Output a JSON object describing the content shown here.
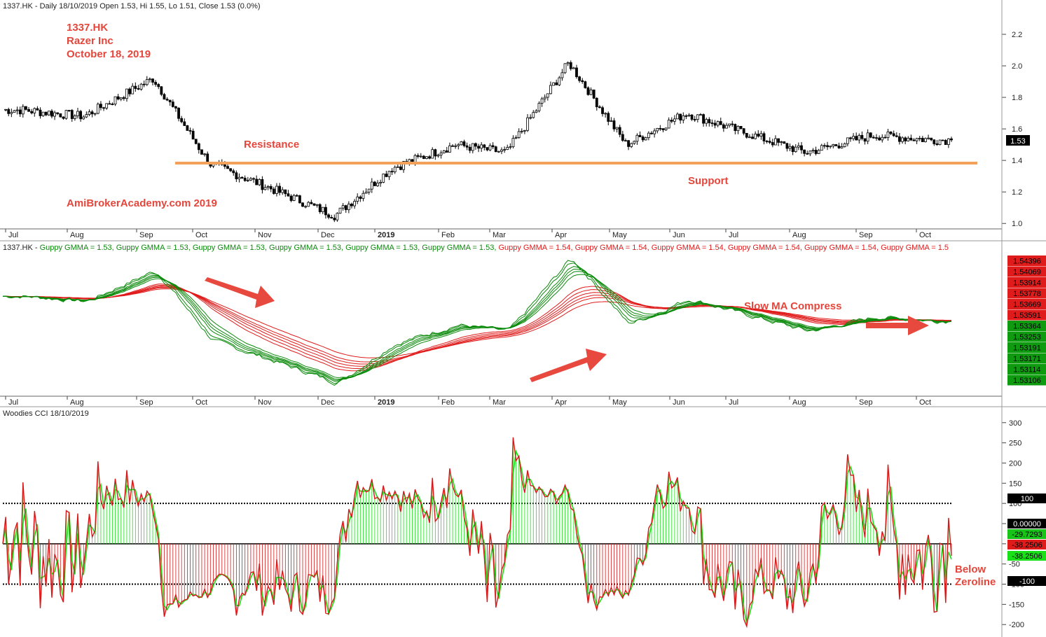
{
  "colors": {
    "annotation": "#e5463b",
    "support_line": "#f2a05a",
    "fast_ma": "#0b8a0b",
    "slow_ma": "#e01b1b",
    "cci_green": "#19e019",
    "cci_red": "#d81818",
    "arrow": "#e8493f"
  },
  "price_panel": {
    "header": "1337.HK - Daily 18/10/2019 Open 1.53, Hi 1.55, Lo 1.51, Close 1.53 (0.0%)",
    "title_lines": [
      "1337.HK",
      "Razer Inc",
      "October 18, 2019"
    ],
    "watermark": "AmiBrokerAcademy.com   2019",
    "resistance_label": "Resistance",
    "support_label": "Support",
    "last_price_badge": "1.53"
  },
  "gmma_panel": {
    "header": {
      "prefix": "1337.HK - ",
      "entries": [
        {
          "text": "Guppy GMMA = 1.53, ",
          "color": "green"
        },
        {
          "text": "Guppy GMMA = 1.53, ",
          "color": "green"
        },
        {
          "text": "Guppy GMMA = 1.53, ",
          "color": "green"
        },
        {
          "text": "Guppy GMMA = 1.53, ",
          "color": "green"
        },
        {
          "text": "Guppy GMMA = 1.53, ",
          "color": "green"
        },
        {
          "text": "Guppy GMMA = 1.53, ",
          "color": "green"
        },
        {
          "text": "Guppy GMMA = 1.54, ",
          "color": "red"
        },
        {
          "text": "Guppy GMMA = 1.54, ",
          "color": "red"
        },
        {
          "text": "Guppy GMMA = 1.54, ",
          "color": "red"
        },
        {
          "text": "Guppy GMMA = 1.54, ",
          "color": "red"
        },
        {
          "text": "Guppy GMMA = 1.54, ",
          "color": "red"
        },
        {
          "text": "Guppy GMMA = 1.5",
          "color": "red"
        }
      ]
    },
    "annotation": "Slow MA Compress",
    "badges_red": [
      "1.54396",
      "1.54069",
      "1.53914",
      "1.53778",
      "1.53669",
      "1.53591"
    ],
    "badges_green": [
      "1.53364",
      "1.53253",
      "1.53191",
      "1.53171",
      "1.53114",
      "1.53106"
    ]
  },
  "cci_panel": {
    "header": "Woodies CCI   18/10/2019",
    "annotation_lines": [
      "Below",
      "Zeroline"
    ],
    "badges": [
      {
        "text": "100",
        "bg": "#000000",
        "fg": "#ffffff"
      },
      {
        "text": "0.00000",
        "bg": "#000000",
        "fg": "#ffffff"
      },
      {
        "text": "-29.7293",
        "bg": "#19c419",
        "fg": "#000000"
      },
      {
        "text": "-38.2506",
        "bg": "#e01b1b",
        "fg": "#000000"
      },
      {
        "text": "-38.2506",
        "bg": "#19e019",
        "fg": "#000000"
      },
      {
        "text": "-100",
        "bg": "#000000",
        "fg": "#ffffff"
      }
    ]
  },
  "chart_data": [
    {
      "type": "candlestick",
      "title": "1337.HK Razer Inc October 18, 2019",
      "x_tick_labels": [
        "Jul",
        "Aug",
        "Sep",
        "Oct",
        "Nov",
        "Dec",
        "2019",
        "Feb",
        "Mar",
        "Apr",
        "May",
        "Jun",
        "Jul",
        "Aug",
        "Sep",
        "Oct"
      ],
      "y_ticks": [
        1.0,
        1.2,
        1.4,
        1.6,
        1.8,
        2.0,
        2.2
      ],
      "ylim": [
        0.97,
        2.32
      ],
      "support_resistance_level": 1.39,
      "approx_monthly_close": [
        {
          "month": "Jul 2018",
          "close": 1.72
        },
        {
          "month": "Aug 2018",
          "close": 1.68
        },
        {
          "month": "Sep 2018",
          "close": 1.92
        },
        {
          "month": "Oct 2018",
          "close": 1.38
        },
        {
          "month": "Nov 2018",
          "close": 1.22
        },
        {
          "month": "Dec 2018",
          "close": 1.05
        },
        {
          "month": "Jan 2019",
          "close": 1.35
        },
        {
          "month": "Feb 2019",
          "close": 1.5
        },
        {
          "month": "Mar 2019",
          "close": 1.45
        },
        {
          "month": "Apr 2019",
          "close": 2.02
        },
        {
          "month": "May 2019",
          "close": 1.5
        },
        {
          "month": "Jun 2019",
          "close": 1.7
        },
        {
          "month": "Jul 2019",
          "close": 1.58
        },
        {
          "month": "Aug 2019",
          "close": 1.45
        },
        {
          "month": "Sep 2019",
          "close": 1.56
        },
        {
          "month": "Oct 2019",
          "close": 1.53
        }
      ],
      "last": {
        "open": 1.53,
        "high": 1.55,
        "low": 1.51,
        "close": 1.53
      }
    },
    {
      "type": "line",
      "title": "Guppy GMMA",
      "x_tick_labels": [
        "Jul",
        "Aug",
        "Sep",
        "Oct",
        "Nov",
        "Dec",
        "2019",
        "Feb",
        "Mar",
        "Apr",
        "May",
        "Jun",
        "Jul",
        "Aug",
        "Sep",
        "Oct"
      ],
      "series": [
        {
          "name": "Guppy GMMA fast (6)",
          "color": "green",
          "last_values": [
            1.53364,
            1.53253,
            1.53191,
            1.53171,
            1.53114,
            1.53106
          ]
        },
        {
          "name": "Guppy GMMA slow (6)",
          "color": "red",
          "last_values": [
            1.54396,
            1.54069,
            1.53914,
            1.53778,
            1.53669,
            1.53591
          ]
        }
      ]
    },
    {
      "type": "line",
      "title": "Woodies CCI",
      "x_tick_labels": [
        "Jul",
        "Aug",
        "Sep",
        "Oct",
        "Nov",
        "Dec",
        "2019",
        "Feb",
        "Mar",
        "Apr",
        "May",
        "Jun",
        "Jul",
        "Aug",
        "Sep",
        "Oct"
      ],
      "y_ticks": [
        -200,
        -150,
        -100,
        -50,
        0,
        50,
        100,
        150,
        200,
        250,
        300
      ],
      "ylim": [
        -210,
        310
      ],
      "reference_lines": [
        100,
        0,
        -100
      ],
      "last": {
        "cci": -29.7293,
        "turbo_cci": -38.2506
      }
    }
  ]
}
